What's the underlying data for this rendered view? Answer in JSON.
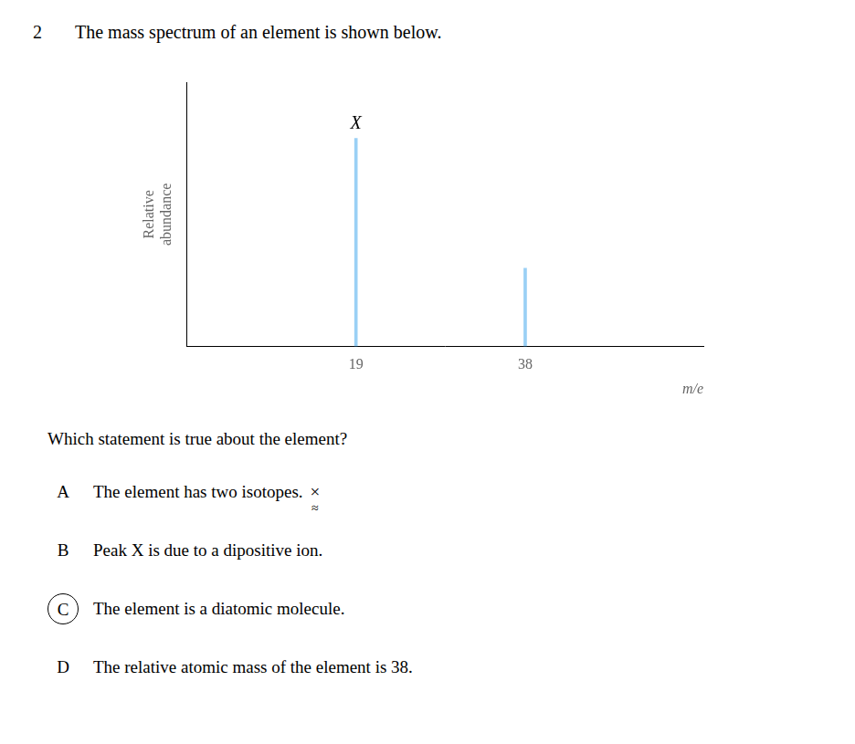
{
  "chart_data": {
    "type": "bar",
    "title": [
      "2",
      "The mass spectrum of an element is shown below."
    ],
    "xlabel": "m/e",
    "ylabel": [
      "Relative",
      "abundance"
    ],
    "x": [
      19,
      38
    ],
    "values": [
      0.85,
      0.32
    ],
    "xlim": [
      0,
      58
    ],
    "xticks": [
      19,
      38
    ],
    "ylim": [
      0,
      1.08
    ],
    "yticks": [],
    "tick_labels": "x",
    "grid": false,
    "annotations": [
      {
        "text": "X",
        "x": 19
      },
      {
        "text": "Which statement is true about the element?"
      },
      {
        "text": [
          "A",
          "The element has two isotopes.",
          "×"
        ],
        "below": "≈"
      },
      {
        "text": [
          "B",
          "Peak X is due to a dipositive ion."
        ]
      },
      {
        "text": [
          "C",
          "The element is a diatomic molecule."
        ],
        "circled": true
      },
      {
        "text": [
          "D",
          "The relative atomic mass of the element is 38."
        ]
      }
    ]
  }
}
